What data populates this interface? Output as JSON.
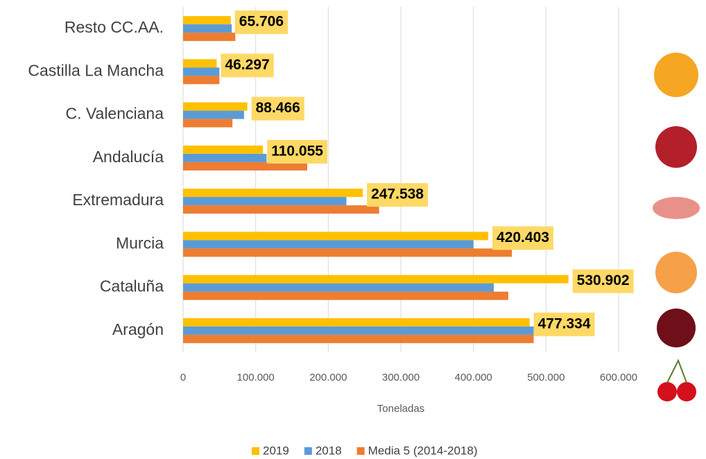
{
  "chart_data": {
    "type": "hbar",
    "x_label": "Toneladas",
    "categories": [
      "Resto CC.AA.",
      "Castilla La Mancha",
      "C. Valenciana",
      "Andalucía",
      "Extremadura",
      "Murcia",
      "Cataluña",
      "Aragón"
    ],
    "series": [
      {
        "name": "2019",
        "color": "#ffc000",
        "values": [
          65706,
          46297,
          88466,
          110055,
          247538,
          420403,
          530902,
          477334
        ],
        "value_labels": [
          "65.706",
          "46.297",
          "88.466",
          "110.055",
          "247.538",
          "420.403",
          "530.902",
          "477.334"
        ]
      },
      {
        "name": "2018",
        "color": "#5b9bd5",
        "values": [
          67000,
          50000,
          84000,
          115000,
          225000,
          400000,
          428000,
          483000
        ]
      },
      {
        "name": "Media 5 (2014-2018)",
        "color": "#ed7d31",
        "values": [
          72000,
          50000,
          68000,
          171000,
          270000,
          453000,
          448000,
          483000
        ]
      }
    ],
    "xlim": [
      0,
      600000
    ],
    "xticks": [
      0,
      {
        "value": 100000,
        "label": "100.000"
      },
      {
        "value": 200000,
        "label": "200.000"
      },
      {
        "value": 300000,
        "label": "300.000"
      },
      {
        "value": 400000,
        "label": "400.000"
      },
      {
        "value": 500000,
        "label": "500.000"
      },
      {
        "value": 600000,
        "label": "600.000"
      }
    ],
    "grid": true,
    "legend": "bottom"
  }
}
